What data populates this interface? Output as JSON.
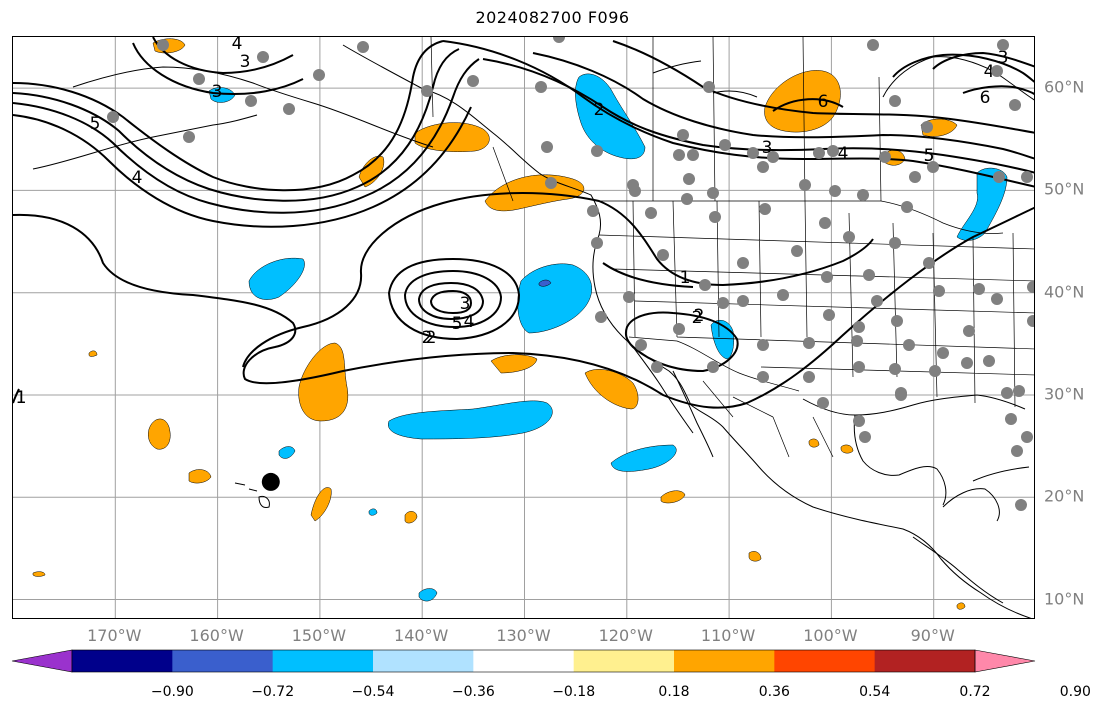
{
  "title": "2024082700 F096",
  "map": {
    "projection": "cylindrical",
    "lon_range": [
      -180,
      -80
    ],
    "lat_range": [
      8,
      65
    ],
    "gridlines": true,
    "lon_labels": [
      "170°W",
      "160°W",
      "150°W",
      "140°W",
      "130°W",
      "120°W",
      "110°W",
      "100°W",
      "90°W"
    ],
    "lat_labels": [
      "60°N",
      "50°N",
      "40°N",
      "30°N",
      "20°N",
      "10°N"
    ],
    "contour_labels": [
      "1",
      "2",
      "3",
      "4",
      "5",
      "2",
      "4",
      "5",
      "6",
      "5",
      "4",
      "3",
      "2",
      "3",
      "3",
      "4",
      "2",
      "1",
      "2",
      "3",
      "4",
      "5",
      "6",
      "1"
    ],
    "station_dot_color": "#808080",
    "marker": {
      "name": "black-circle",
      "lon": -154.8,
      "lat": 21.5
    }
  },
  "colorbar": {
    "ticks": [
      "−0.90",
      "−0.72",
      "−0.54",
      "−0.36",
      "−0.18",
      "0.18",
      "0.36",
      "0.54",
      "0.72",
      "0.90"
    ],
    "colors": [
      "#9a32cd",
      "#00008b",
      "#3a5fcd",
      "#00bfff",
      "#b0e2ff",
      "#ffffff",
      "#fff08f",
      "#ffa500",
      "#ff4500",
      "#b22222",
      "#ff88aa"
    ]
  }
}
